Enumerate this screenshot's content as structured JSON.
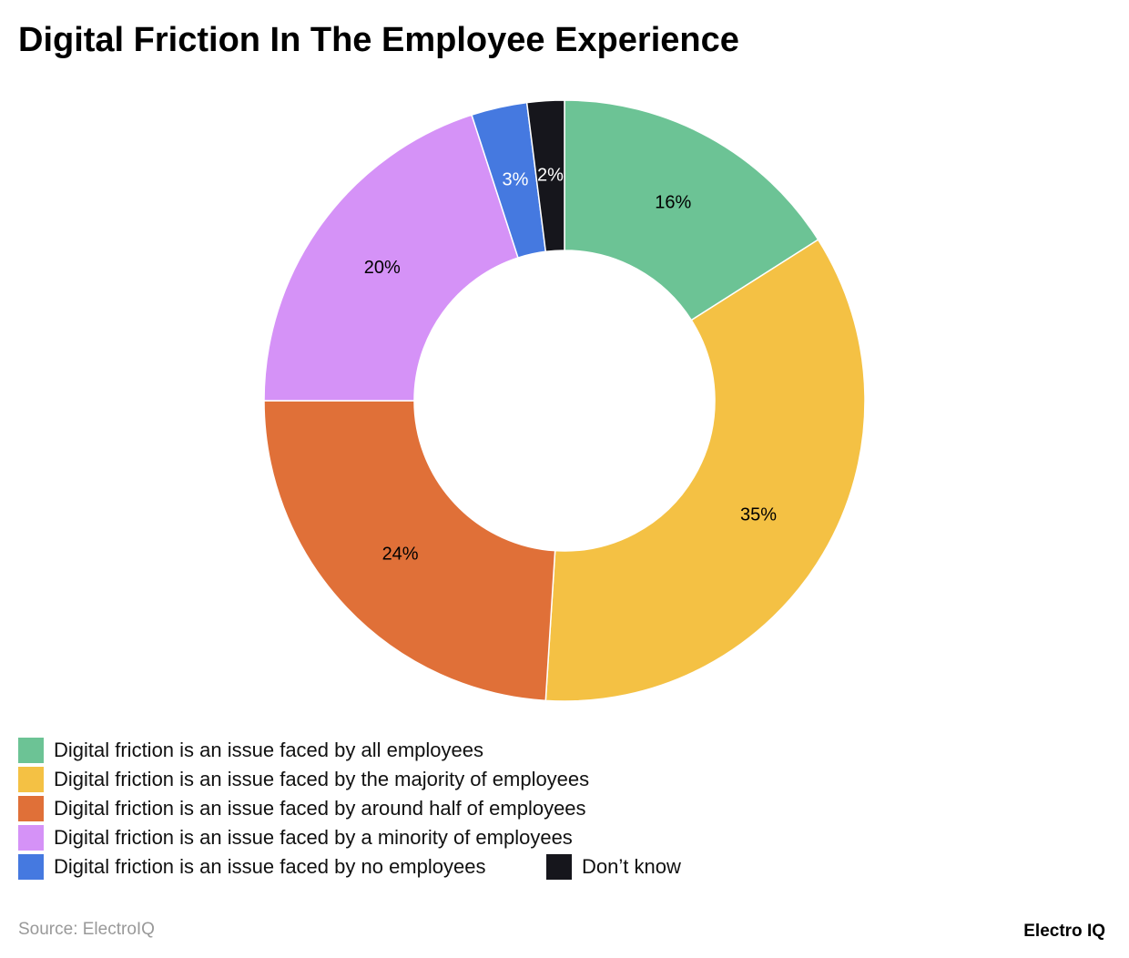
{
  "chart_data": {
    "type": "donut",
    "title": "Digital Friction In The Employee Experience",
    "categories": [
      "Digital friction is an issue faced by all employees",
      "Digital friction is an issue faced by the majority of employees",
      "Digital friction is an issue faced by around half of employees",
      "Digital friction is an issue faced by a minority of employees",
      "Digital friction is an issue faced by no employees",
      "Don’t know"
    ],
    "values": [
      16,
      35,
      24,
      20,
      3,
      2
    ],
    "value_labels": [
      "16%",
      "35%",
      "24%",
      "20%",
      "3%",
      "2%"
    ],
    "colors": [
      "#6cc395",
      "#f4c144",
      "#e07038",
      "#d592f7",
      "#4579e0",
      "#16161c"
    ],
    "legend": "bottom-left",
    "source": "Source: ElectroIQ",
    "brand": "Electro IQ"
  }
}
